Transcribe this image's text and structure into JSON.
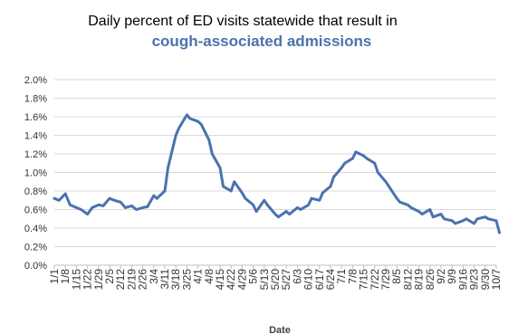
{
  "chart_data": {
    "type": "line",
    "title_line1": "Daily percent of ED visits statewide that result in",
    "title_line2": "cough-associated admissions",
    "xlabel": "Date",
    "ylabel": "",
    "ylim": [
      0,
      2.0
    ],
    "y_ticks": [
      "0.0%",
      "0.2%",
      "0.4%",
      "0.6%",
      "0.8%",
      "1.0%",
      "1.2%",
      "1.4%",
      "1.6%",
      "1.8%",
      "2.0%"
    ],
    "x_ticks": [
      "1/1",
      "1/8",
      "1/15",
      "1/22",
      "1/29",
      "2/5",
      "2/12",
      "2/19",
      "2/26",
      "3/4",
      "3/11",
      "3/18",
      "3/25",
      "4/1",
      "4/8",
      "4/15",
      "4/22",
      "4/29",
      "5/6",
      "5/13",
      "5/20",
      "5/27",
      "6/3",
      "6/10",
      "6/17",
      "6/24",
      "7/1",
      "7/8",
      "7/15",
      "7/22",
      "7/29",
      "8/5",
      "8/12",
      "8/19",
      "8/26",
      "9/2",
      "9/9",
      "9/16",
      "9/23",
      "9/30",
      "10/7"
    ],
    "grid": true,
    "legend": "none",
    "line_color": "#4a73ad",
    "series": [
      {
        "x": [
          "1/1",
          "1/4",
          "1/8",
          "1/11",
          "1/15",
          "1/18",
          "1/22",
          "1/25",
          "1/29",
          "2/1",
          "2/5",
          "2/8",
          "2/12",
          "2/15",
          "2/19",
          "2/22",
          "2/26",
          "3/1",
          "3/4",
          "3/7",
          "3/11",
          "3/14",
          "3/18",
          "3/21",
          "3/25",
          "3/28",
          "4/1",
          "4/4",
          "4/8",
          "4/11",
          "4/15",
          "4/18",
          "4/22",
          "4/25",
          "4/29",
          "5/2",
          "5/6",
          "5/9",
          "5/13",
          "5/16",
          "5/20",
          "5/23",
          "5/27",
          "5/30",
          "6/3",
          "6/6",
          "6/10",
          "6/13",
          "6/17",
          "6/20",
          "6/24",
          "6/27",
          "7/1",
          "7/4",
          "7/8",
          "7/11",
          "7/15",
          "7/18",
          "7/22",
          "7/25",
          "7/29",
          "8/1",
          "8/5",
          "8/8",
          "8/12",
          "8/15",
          "8/19",
          "8/22",
          "8/26",
          "8/29",
          "9/2",
          "9/5",
          "9/9",
          "9/12",
          "9/16",
          "9/19",
          "9/23",
          "9/26",
          "9/30",
          "10/3",
          "10/7",
          "10/10"
        ],
        "values": [
          0.72,
          0.7,
          0.77,
          0.65,
          0.62,
          0.6,
          0.55,
          0.62,
          0.65,
          0.64,
          0.72,
          0.7,
          0.68,
          0.62,
          0.64,
          0.6,
          0.62,
          0.63,
          0.75,
          0.72,
          0.8,
          1.05,
          1.4,
          1.48,
          1.62,
          1.58,
          1.55,
          1.52,
          1.35,
          1.2,
          1.05,
          0.85,
          0.8,
          0.9,
          0.78,
          0.72,
          0.65,
          0.58,
          0.7,
          0.65,
          0.55,
          0.52,
          0.58,
          0.55,
          0.62,
          0.6,
          0.65,
          0.72,
          0.7,
          0.78,
          0.85,
          0.95,
          1.05,
          1.1,
          1.15,
          1.22,
          1.18,
          1.15,
          1.1,
          1.0,
          0.9,
          0.85,
          0.72,
          0.68,
          0.65,
          0.62,
          0.58,
          0.55,
          0.6,
          0.52,
          0.55,
          0.5,
          0.48,
          0.45,
          0.48,
          0.5,
          0.45,
          0.5,
          0.52,
          0.5,
          0.48,
          0.35
        ]
      }
    ]
  }
}
